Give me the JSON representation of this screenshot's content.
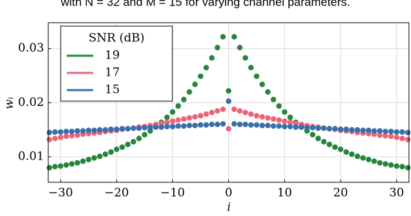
{
  "chart_data": {
    "type": "scatter",
    "caption": "with N = 32 and M = 15 for varying channel parameters.",
    "xlabel": "i",
    "ylabel": "wᵢ",
    "legend_title": "SNR (dB)",
    "legend": "upper left",
    "grid": true,
    "xlim": [
      -32.2,
      32.2
    ],
    "ylim": [
      0.0053,
      0.0348
    ],
    "xticks": [
      {
        "value": -30,
        "label": "−30"
      },
      {
        "value": -20,
        "label": "−20"
      },
      {
        "value": -10,
        "label": "−10"
      },
      0,
      10,
      20,
      30
    ],
    "yticks": [
      0.01,
      0.02,
      0.03
    ],
    "x": [
      -32,
      -31,
      -30,
      -29,
      -28,
      -27,
      -26,
      -25,
      -24,
      -23,
      -22,
      -21,
      -20,
      -19,
      -18,
      -17,
      -16,
      -15,
      -14,
      -13,
      -12,
      -11,
      -10,
      -9,
      -8,
      -7,
      -6,
      -5,
      -4,
      -3,
      -2,
      -1,
      0,
      1,
      2,
      3,
      4,
      5,
      6,
      7,
      8,
      9,
      10,
      11,
      12,
      13,
      14,
      15,
      16,
      17,
      18,
      19,
      20,
      21,
      22,
      23,
      24,
      25,
      26,
      27,
      28,
      29,
      30,
      31,
      32
    ],
    "series": [
      {
        "name": "19",
        "color": "#25853a",
        "values": [
          0.008,
          0.0082,
          0.0083,
          0.0085,
          0.0087,
          0.0089,
          0.0092,
          0.0095,
          0.0098,
          0.0101,
          0.0105,
          0.0109,
          0.0114,
          0.0118,
          0.0123,
          0.0128,
          0.0134,
          0.0141,
          0.0148,
          0.0155,
          0.0164,
          0.0173,
          0.0183,
          0.0194,
          0.0206,
          0.022,
          0.0234,
          0.0249,
          0.0265,
          0.0283,
          0.0302,
          0.0322,
          0.0222,
          0.0322,
          0.0302,
          0.0283,
          0.0265,
          0.0249,
          0.0234,
          0.022,
          0.0206,
          0.0194,
          0.0183,
          0.0173,
          0.0164,
          0.0155,
          0.0148,
          0.0141,
          0.0134,
          0.0128,
          0.0123,
          0.0118,
          0.0114,
          0.0109,
          0.0105,
          0.0101,
          0.0098,
          0.0095,
          0.0092,
          0.0089,
          0.0087,
          0.0085,
          0.0083,
          0.0082,
          0.008
        ]
      },
      {
        "name": "17",
        "color": "#ec6478",
        "values": [
          0.0132,
          0.0134,
          0.0136,
          0.0138,
          0.0139,
          0.014,
          0.0142,
          0.0143,
          0.0144,
          0.0145,
          0.0147,
          0.0148,
          0.0149,
          0.0151,
          0.0152,
          0.0153,
          0.0155,
          0.0156,
          0.0158,
          0.016,
          0.0162,
          0.0164,
          0.0166,
          0.0168,
          0.017,
          0.0172,
          0.0174,
          0.0176,
          0.0179,
          0.0182,
          0.0185,
          0.0188,
          0.0152,
          0.0188,
          0.0185,
          0.0182,
          0.0179,
          0.0176,
          0.0174,
          0.0172,
          0.017,
          0.0168,
          0.0166,
          0.0164,
          0.0162,
          0.016,
          0.0158,
          0.0156,
          0.0155,
          0.0153,
          0.0152,
          0.0151,
          0.0149,
          0.0148,
          0.0147,
          0.0145,
          0.0144,
          0.0143,
          0.0142,
          0.014,
          0.0139,
          0.0138,
          0.0136,
          0.0134,
          0.0132
        ]
      },
      {
        "name": "15",
        "color": "#3a6ea8",
        "values": [
          0.0145,
          0.0146,
          0.0146,
          0.0147,
          0.0147,
          0.0148,
          0.0148,
          0.0149,
          0.0149,
          0.015,
          0.015,
          0.0151,
          0.0151,
          0.0152,
          0.0152,
          0.0153,
          0.0153,
          0.0154,
          0.0154,
          0.0155,
          0.0155,
          0.0156,
          0.0156,
          0.0157,
          0.0157,
          0.0158,
          0.0158,
          0.0159,
          0.0159,
          0.016,
          0.016,
          0.0161,
          0.0203,
          0.0161,
          0.016,
          0.016,
          0.0159,
          0.0159,
          0.0158,
          0.0158,
          0.0157,
          0.0157,
          0.0156,
          0.0156,
          0.0155,
          0.0155,
          0.0154,
          0.0154,
          0.0153,
          0.0153,
          0.0152,
          0.0152,
          0.0151,
          0.0151,
          0.015,
          0.015,
          0.0149,
          0.0149,
          0.0148,
          0.0148,
          0.0147,
          0.0147,
          0.0146,
          0.0146,
          0.0145
        ]
      }
    ]
  }
}
